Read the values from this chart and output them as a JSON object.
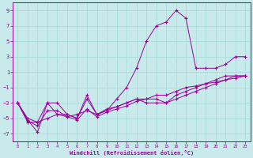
{
  "xlabel": "Windchill (Refroidissement éolien,°C)",
  "bg_color": "#c8eaea",
  "line_color": "#990099",
  "grid_color": "#aadddd",
  "xlim": [
    -0.5,
    23.5
  ],
  "ylim": [
    -8,
    10
  ],
  "xticks": [
    0,
    1,
    2,
    3,
    4,
    5,
    6,
    7,
    8,
    9,
    10,
    11,
    12,
    13,
    14,
    15,
    16,
    17,
    18,
    19,
    20,
    21,
    22,
    23
  ],
  "yticks": [
    -7,
    -5,
    -3,
    -1,
    1,
    3,
    5,
    7,
    9
  ],
  "s1x": [
    0,
    1,
    2,
    3,
    4,
    5,
    6,
    7,
    8,
    9,
    10,
    11,
    12,
    13,
    14,
    15,
    16,
    17,
    18,
    19,
    20,
    21,
    22,
    23
  ],
  "s1y": [
    -3.0,
    -5.2,
    -6.8,
    -3.0,
    -3.0,
    -4.5,
    -5.0,
    -2.0,
    -4.5,
    -3.8,
    -3.5,
    -3.0,
    -2.5,
    -3.0,
    -3.0,
    -3.0,
    -2.5,
    -2.0,
    -1.5,
    -1.0,
    -0.5,
    0.0,
    0.5,
    0.5
  ],
  "s2x": [
    0,
    1,
    2,
    3,
    4,
    5,
    6,
    7,
    8,
    9,
    10,
    11,
    12,
    13,
    14,
    15,
    16,
    17,
    18,
    19,
    20,
    21,
    22,
    23
  ],
  "s2y": [
    -3.0,
    -5.5,
    -5.5,
    -5.0,
    -4.5,
    -4.8,
    -4.5,
    -4.0,
    -4.5,
    -4.0,
    -2.5,
    -1.0,
    1.5,
    5.0,
    7.0,
    7.5,
    9.0,
    8.0,
    1.5,
    1.5,
    1.5,
    2.0,
    3.0,
    3.0
  ],
  "s3x": [
    0,
    1,
    2,
    3,
    4,
    5,
    6,
    7,
    8,
    9,
    10,
    11,
    12,
    13,
    14,
    15,
    16,
    17,
    18,
    19,
    20,
    21,
    22,
    23
  ],
  "s3y": [
    -3.0,
    -5.0,
    -5.5,
    -3.0,
    -4.5,
    -4.5,
    -5.0,
    -2.5,
    -4.5,
    -4.0,
    -3.5,
    -3.0,
    -2.5,
    -2.5,
    -2.5,
    -3.0,
    -2.0,
    -1.5,
    -1.0,
    -0.5,
    0.0,
    0.5,
    0.5,
    0.5
  ],
  "s4x": [
    0,
    1,
    2,
    3,
    4,
    5,
    6,
    7,
    8,
    9,
    10,
    11,
    12,
    13,
    14,
    15,
    16,
    17,
    18,
    19,
    20,
    21,
    22,
    23
  ],
  "s4y": [
    -3.0,
    -5.3,
    -6.0,
    -4.0,
    -4.0,
    -4.8,
    -5.2,
    -3.8,
    -4.8,
    -4.2,
    -3.8,
    -3.4,
    -2.8,
    -2.5,
    -2.0,
    -2.0,
    -1.5,
    -1.0,
    -0.8,
    -0.5,
    -0.3,
    0.0,
    0.2,
    0.5
  ]
}
